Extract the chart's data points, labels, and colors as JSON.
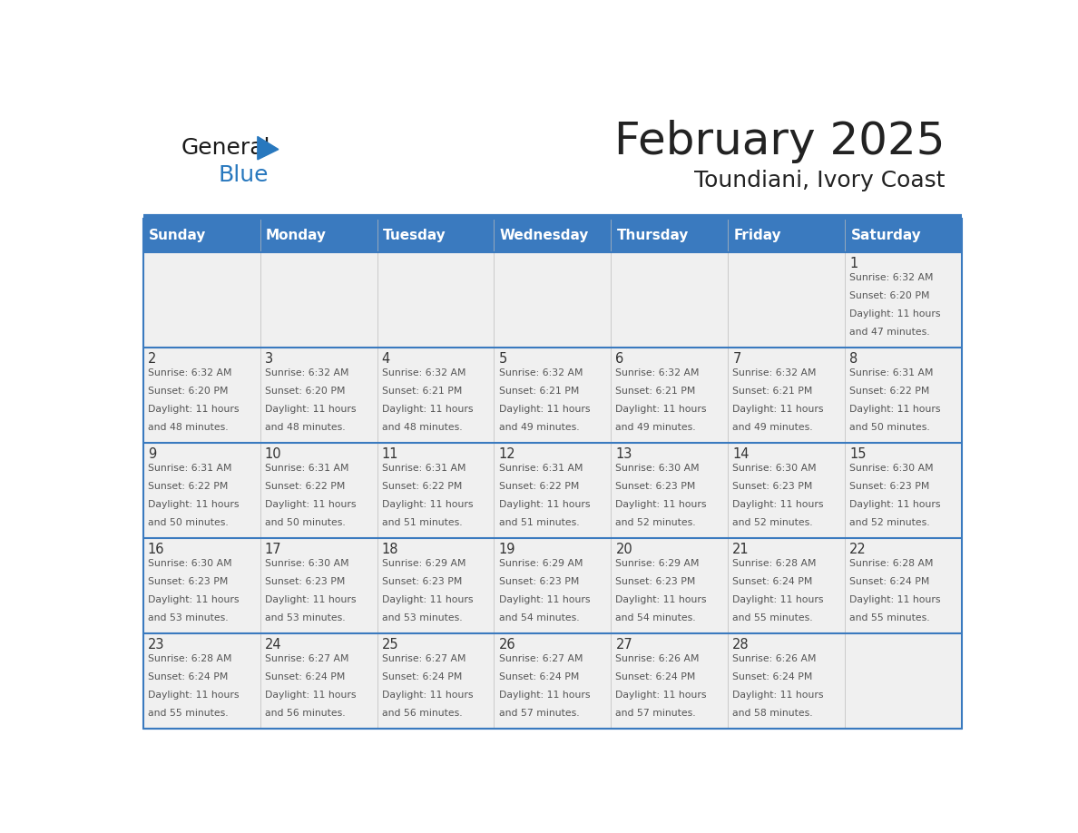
{
  "title": "February 2025",
  "subtitle": "Toundiani, Ivory Coast",
  "days_of_week": [
    "Sunday",
    "Monday",
    "Tuesday",
    "Wednesday",
    "Thursday",
    "Friday",
    "Saturday"
  ],
  "header_bg": "#3a7abf",
  "header_text": "#ffffff",
  "row_bg_light": "#f0f0f0",
  "border_color": "#3a7abf",
  "text_color": "#222222",
  "day_number_color": "#333333",
  "cell_text_color": "#555555",
  "calendar_data": [
    [
      null,
      null,
      null,
      null,
      null,
      null,
      {
        "day": 1,
        "sunrise": "6:32 AM",
        "sunset": "6:20 PM",
        "daylight": "11 hours and 47 minutes."
      }
    ],
    [
      {
        "day": 2,
        "sunrise": "6:32 AM",
        "sunset": "6:20 PM",
        "daylight": "11 hours and 48 minutes."
      },
      {
        "day": 3,
        "sunrise": "6:32 AM",
        "sunset": "6:20 PM",
        "daylight": "11 hours and 48 minutes."
      },
      {
        "day": 4,
        "sunrise": "6:32 AM",
        "sunset": "6:21 PM",
        "daylight": "11 hours and 48 minutes."
      },
      {
        "day": 5,
        "sunrise": "6:32 AM",
        "sunset": "6:21 PM",
        "daylight": "11 hours and 49 minutes."
      },
      {
        "day": 6,
        "sunrise": "6:32 AM",
        "sunset": "6:21 PM",
        "daylight": "11 hours and 49 minutes."
      },
      {
        "day": 7,
        "sunrise": "6:32 AM",
        "sunset": "6:21 PM",
        "daylight": "11 hours and 49 minutes."
      },
      {
        "day": 8,
        "sunrise": "6:31 AM",
        "sunset": "6:22 PM",
        "daylight": "11 hours and 50 minutes."
      }
    ],
    [
      {
        "day": 9,
        "sunrise": "6:31 AM",
        "sunset": "6:22 PM",
        "daylight": "11 hours and 50 minutes."
      },
      {
        "day": 10,
        "sunrise": "6:31 AM",
        "sunset": "6:22 PM",
        "daylight": "11 hours and 50 minutes."
      },
      {
        "day": 11,
        "sunrise": "6:31 AM",
        "sunset": "6:22 PM",
        "daylight": "11 hours and 51 minutes."
      },
      {
        "day": 12,
        "sunrise": "6:31 AM",
        "sunset": "6:22 PM",
        "daylight": "11 hours and 51 minutes."
      },
      {
        "day": 13,
        "sunrise": "6:30 AM",
        "sunset": "6:23 PM",
        "daylight": "11 hours and 52 minutes."
      },
      {
        "day": 14,
        "sunrise": "6:30 AM",
        "sunset": "6:23 PM",
        "daylight": "11 hours and 52 minutes."
      },
      {
        "day": 15,
        "sunrise": "6:30 AM",
        "sunset": "6:23 PM",
        "daylight": "11 hours and 52 minutes."
      }
    ],
    [
      {
        "day": 16,
        "sunrise": "6:30 AM",
        "sunset": "6:23 PM",
        "daylight": "11 hours and 53 minutes."
      },
      {
        "day": 17,
        "sunrise": "6:30 AM",
        "sunset": "6:23 PM",
        "daylight": "11 hours and 53 minutes."
      },
      {
        "day": 18,
        "sunrise": "6:29 AM",
        "sunset": "6:23 PM",
        "daylight": "11 hours and 53 minutes."
      },
      {
        "day": 19,
        "sunrise": "6:29 AM",
        "sunset": "6:23 PM",
        "daylight": "11 hours and 54 minutes."
      },
      {
        "day": 20,
        "sunrise": "6:29 AM",
        "sunset": "6:23 PM",
        "daylight": "11 hours and 54 minutes."
      },
      {
        "day": 21,
        "sunrise": "6:28 AM",
        "sunset": "6:24 PM",
        "daylight": "11 hours and 55 minutes."
      },
      {
        "day": 22,
        "sunrise": "6:28 AM",
        "sunset": "6:24 PM",
        "daylight": "11 hours and 55 minutes."
      }
    ],
    [
      {
        "day": 23,
        "sunrise": "6:28 AM",
        "sunset": "6:24 PM",
        "daylight": "11 hours and 55 minutes."
      },
      {
        "day": 24,
        "sunrise": "6:27 AM",
        "sunset": "6:24 PM",
        "daylight": "11 hours and 56 minutes."
      },
      {
        "day": 25,
        "sunrise": "6:27 AM",
        "sunset": "6:24 PM",
        "daylight": "11 hours and 56 minutes."
      },
      {
        "day": 26,
        "sunrise": "6:27 AM",
        "sunset": "6:24 PM",
        "daylight": "11 hours and 57 minutes."
      },
      {
        "day": 27,
        "sunrise": "6:26 AM",
        "sunset": "6:24 PM",
        "daylight": "11 hours and 57 minutes."
      },
      {
        "day": 28,
        "sunrise": "6:26 AM",
        "sunset": "6:24 PM",
        "daylight": "11 hours and 58 minutes."
      },
      null
    ]
  ],
  "logo_general_color": "#1a1a1a",
  "logo_blue_color": "#2878be",
  "logo_triangle_color": "#2878be"
}
